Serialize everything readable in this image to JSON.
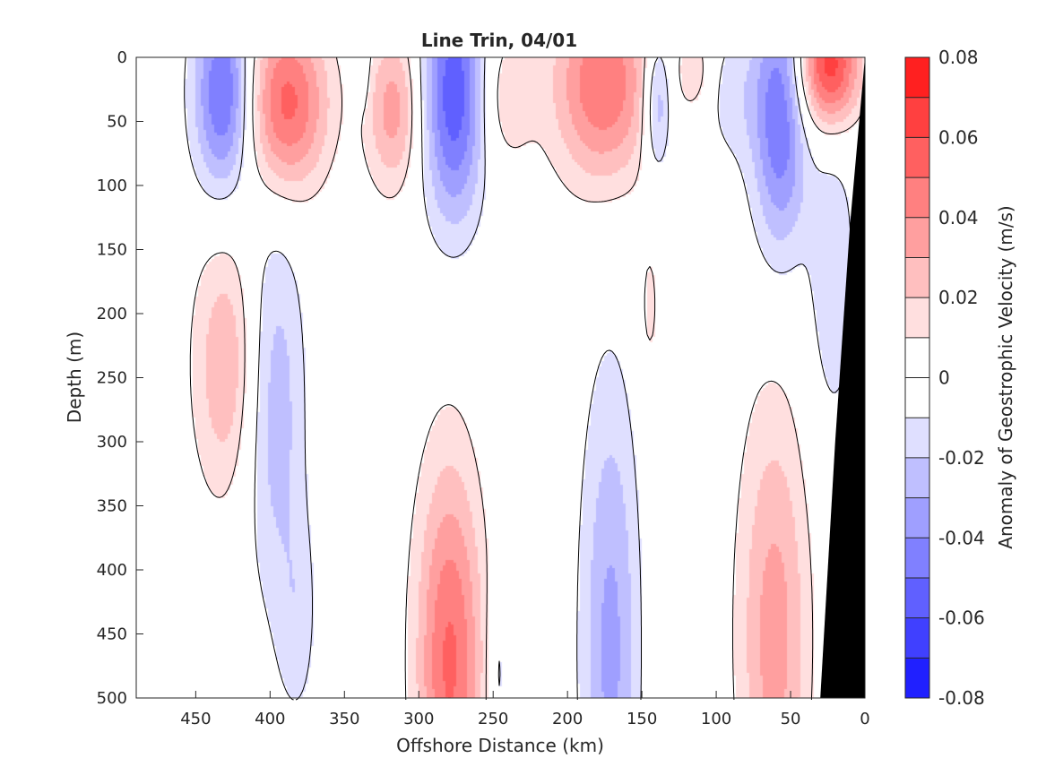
{
  "chart_data": {
    "type": "heatmap",
    "subtype": "filled-contour",
    "title": "Line Trin, 04/01",
    "xlabel": "Offshore Distance (km)",
    "ylabel": "Depth (m)",
    "xlim": [
      490,
      0
    ],
    "ylim": [
      0,
      500
    ],
    "x_reversed": true,
    "y_reversed": true,
    "xticks": [
      450,
      400,
      350,
      300,
      250,
      200,
      150,
      100,
      50,
      0
    ],
    "yticks": [
      0,
      50,
      100,
      150,
      200,
      250,
      300,
      350,
      400,
      450,
      500
    ],
    "colorbar": {
      "label": "Anomaly of Geostrophic Velocity (m/s)",
      "range": [
        -0.08,
        0.08
      ],
      "levels": [
        -0.08,
        -0.07,
        -0.06,
        -0.05,
        -0.04,
        -0.03,
        -0.02,
        -0.01,
        0,
        0.01,
        0.02,
        0.03,
        0.04,
        0.05,
        0.06,
        0.07,
        0.08
      ],
      "tick_values": [
        0.08,
        0.06,
        0.04,
        0.02,
        0,
        -0.02,
        -0.04,
        -0.06,
        -0.08
      ],
      "tick_labels": [
        "0.08",
        "0.06",
        "0.04",
        "0.02",
        "0",
        "-0.02",
        "-0.04",
        "-0.06",
        "-0.08"
      ]
    },
    "colors": {
      "positive_max": "#ff0000",
      "negative_max": "#0000ff",
      "zero": "#ffffff",
      "bathymetry": "#000000",
      "zero_contour": "#000000"
    },
    "features": [
      {
        "x": 432,
        "y": 28,
        "sx": 14,
        "sy": 55,
        "value": -0.055
      },
      {
        "x": 390,
        "y": 35,
        "sx": 20,
        "sy": 50,
        "value": 0.055
      },
      {
        "x": 337,
        "y": 5,
        "sx": 3,
        "sy": 25,
        "value": -0.012
      },
      {
        "x": 318,
        "y": 40,
        "sx": 13,
        "sy": 45,
        "value": 0.035
      },
      {
        "x": 277,
        "y": 28,
        "sx": 15,
        "sy": 70,
        "value": -0.058
      },
      {
        "x": 243,
        "y": 30,
        "sx": 14,
        "sy": 40,
        "value": 0.018
      },
      {
        "x": 177,
        "y": 20,
        "sx": 24,
        "sy": 55,
        "value": 0.05
      },
      {
        "x": 140,
        "y": 35,
        "sx": 7,
        "sy": 40,
        "value": -0.035
      },
      {
        "x": 115,
        "y": 10,
        "sx": 8,
        "sy": 22,
        "value": 0.018
      },
      {
        "x": 145,
        "y": 195,
        "sx": 5,
        "sy": 40,
        "value": 0.014
      },
      {
        "x": 58,
        "y": 45,
        "sx": 13,
        "sy": 75,
        "value": -0.05
      },
      {
        "x": 90,
        "y": 30,
        "sx": 13,
        "sy": 40,
        "value": -0.014
      },
      {
        "x": 25,
        "y": 5,
        "sx": 15,
        "sy": 35,
        "value": 0.068
      },
      {
        "x": 22,
        "y": 170,
        "sx": 12,
        "sy": 90,
        "value": -0.018
      },
      {
        "x": 430,
        "y": 240,
        "sx": 16,
        "sy": 75,
        "value": 0.03
      },
      {
        "x": 398,
        "y": 270,
        "sx": 15,
        "sy": 110,
        "value": -0.027
      },
      {
        "x": 382,
        "y": 440,
        "sx": 10,
        "sy": 60,
        "value": -0.014
      },
      {
        "x": 280,
        "y": 470,
        "sx": 16,
        "sy": 110,
        "value": 0.052
      },
      {
        "x": 247,
        "y": 480,
        "sx": 5,
        "sy": 50,
        "value": -0.016
      },
      {
        "x": 172,
        "y": 460,
        "sx": 14,
        "sy": 150,
        "value": -0.033
      },
      {
        "x": 62,
        "y": 450,
        "sx": 17,
        "sy": 130,
        "value": 0.035
      }
    ],
    "bathymetry_polygon": [
      [
        0,
        0
      ],
      [
        0,
        500
      ],
      [
        30,
        500
      ],
      [
        20,
        300
      ],
      [
        10,
        130
      ],
      [
        0,
        0
      ]
    ]
  }
}
